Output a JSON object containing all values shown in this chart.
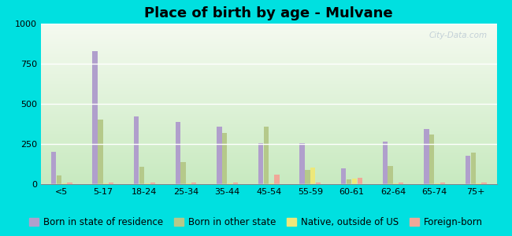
{
  "title": "Place of birth by age - Mulvane",
  "categories": [
    "<5",
    "5-17",
    "18-24",
    "25-34",
    "35-44",
    "45-54",
    "55-59",
    "60-61",
    "62-64",
    "65-74",
    "75+"
  ],
  "series": {
    "Born in state of residence": [
      200,
      830,
      420,
      385,
      360,
      255,
      255,
      100,
      265,
      345,
      175
    ],
    "Born in other state": [
      55,
      400,
      110,
      135,
      320,
      360,
      90,
      30,
      115,
      310,
      195
    ],
    "Native, outside of US": [
      5,
      5,
      5,
      5,
      5,
      5,
      105,
      35,
      5,
      5,
      5
    ],
    "Foreign-born": [
      12,
      12,
      8,
      12,
      12,
      60,
      8,
      38,
      12,
      12,
      12
    ]
  },
  "colors": {
    "Born in state of residence": "#b09fcc",
    "Born in other state": "#b5c98a",
    "Native, outside of US": "#ede87a",
    "Foreign-born": "#f0a898"
  },
  "ylim": [
    0,
    1000
  ],
  "yticks": [
    0,
    250,
    500,
    750,
    1000
  ],
  "grad_top": "#f5faf0",
  "grad_bottom": "#c8eac0",
  "outer_background": "#00e0e0",
  "bar_width": 0.12,
  "title_fontsize": 13,
  "tick_fontsize": 8,
  "legend_fontsize": 8.5
}
